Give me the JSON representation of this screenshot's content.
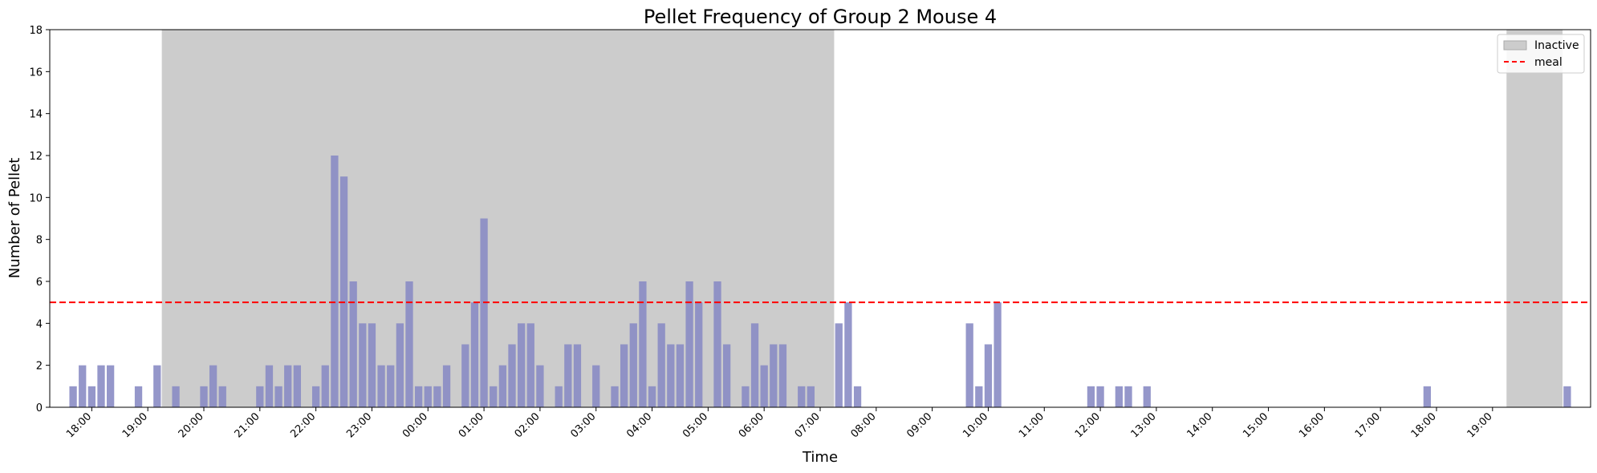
{
  "chart_data": {
    "type": "bar",
    "title": "Pellet Frequency of Group 2 Mouse 4",
    "xlabel": "Time",
    "ylabel": "Number of Pellet",
    "x_unit": "hour",
    "x_start": "17:15",
    "xlim": [
      "17:15",
      "20:45 (next day)"
    ],
    "ylim": [
      0,
      18
    ],
    "yticks": [
      0,
      2,
      4,
      6,
      8,
      10,
      12,
      14,
      16,
      18
    ],
    "xtick_labels": [
      "18:00",
      "19:00",
      "20:00",
      "21:00",
      "22:00",
      "23:00",
      "00:00",
      "01:00",
      "02:00",
      "03:00",
      "04:00",
      "05:00",
      "06:00",
      "07:00",
      "08:00",
      "09:00",
      "10:00",
      "11:00",
      "12:00",
      "13:00",
      "14:00",
      "15:00",
      "16:00",
      "17:00",
      "18:00",
      "19:00"
    ],
    "bar_width_hours": 0.133,
    "bar_color": "#8a8cc4",
    "series": [
      {
        "points": [
          {
            "t": "17:40",
            "v": 1
          },
          {
            "t": "17:50",
            "v": 2
          },
          {
            "t": "18:00",
            "v": 1
          },
          {
            "t": "18:10",
            "v": 2
          },
          {
            "t": "18:20",
            "v": 2
          },
          {
            "t": "18:50",
            "v": 1
          },
          {
            "t": "19:10",
            "v": 2
          },
          {
            "t": "19:30",
            "v": 1
          },
          {
            "t": "20:00",
            "v": 1
          },
          {
            "t": "20:10",
            "v": 2
          },
          {
            "t": "20:20",
            "v": 1
          },
          {
            "t": "21:00",
            "v": 1
          },
          {
            "t": "21:10",
            "v": 2
          },
          {
            "t": "21:20",
            "v": 1
          },
          {
            "t": "21:30",
            "v": 2
          },
          {
            "t": "21:40",
            "v": 2
          },
          {
            "t": "22:00",
            "v": 1
          },
          {
            "t": "22:10",
            "v": 2
          },
          {
            "t": "22:20",
            "v": 12
          },
          {
            "t": "22:30",
            "v": 11
          },
          {
            "t": "22:40",
            "v": 6
          },
          {
            "t": "22:50",
            "v": 4
          },
          {
            "t": "23:00",
            "v": 4
          },
          {
            "t": "23:10",
            "v": 2
          },
          {
            "t": "23:20",
            "v": 2
          },
          {
            "t": "23:30",
            "v": 4
          },
          {
            "t": "23:40",
            "v": 6
          },
          {
            "t": "23:50",
            "v": 1
          },
          {
            "t": "00:00",
            "v": 1
          },
          {
            "t": "00:10",
            "v": 1
          },
          {
            "t": "00:20",
            "v": 2
          },
          {
            "t": "00:40",
            "v": 3
          },
          {
            "t": "00:50",
            "v": 5
          },
          {
            "t": "01:00",
            "v": 9
          },
          {
            "t": "01:10",
            "v": 1
          },
          {
            "t": "01:20",
            "v": 2
          },
          {
            "t": "01:30",
            "v": 3
          },
          {
            "t": "01:40",
            "v": 4
          },
          {
            "t": "01:50",
            "v": 4
          },
          {
            "t": "02:00",
            "v": 2
          },
          {
            "t": "02:20",
            "v": 1
          },
          {
            "t": "02:30",
            "v": 3
          },
          {
            "t": "02:40",
            "v": 3
          },
          {
            "t": "03:00",
            "v": 2
          },
          {
            "t": "03:20",
            "v": 1
          },
          {
            "t": "03:30",
            "v": 3
          },
          {
            "t": "03:40",
            "v": 4
          },
          {
            "t": "03:50",
            "v": 6
          },
          {
            "t": "04:00",
            "v": 1
          },
          {
            "t": "04:10",
            "v": 4
          },
          {
            "t": "04:20",
            "v": 3
          },
          {
            "t": "04:30",
            "v": 3
          },
          {
            "t": "04:40",
            "v": 6
          },
          {
            "t": "04:50",
            "v": 5
          },
          {
            "t": "05:10",
            "v": 6
          },
          {
            "t": "05:20",
            "v": 3
          },
          {
            "t": "05:40",
            "v": 1
          },
          {
            "t": "05:50",
            "v": 4
          },
          {
            "t": "06:00",
            "v": 2
          },
          {
            "t": "06:10",
            "v": 3
          },
          {
            "t": "06:20",
            "v": 3
          },
          {
            "t": "06:40",
            "v": 1
          },
          {
            "t": "06:50",
            "v": 1
          },
          {
            "t": "07:20",
            "v": 4
          },
          {
            "t": "07:30",
            "v": 5
          },
          {
            "t": "07:40",
            "v": 1
          },
          {
            "t": "09:40",
            "v": 4
          },
          {
            "t": "09:50",
            "v": 1
          },
          {
            "t": "10:00",
            "v": 3
          },
          {
            "t": "10:10",
            "v": 5
          },
          {
            "t": "11:50",
            "v": 1
          },
          {
            "t": "12:00",
            "v": 1
          },
          {
            "t": "12:20",
            "v": 1
          },
          {
            "t": "12:30",
            "v": 1
          },
          {
            "t": "12:50",
            "v": 1
          },
          {
            "t": "17:50",
            "v": 1
          },
          {
            "t": "20:20",
            "v": 1
          }
        ]
      }
    ],
    "inactive_periods": [
      {
        "start": "19:15",
        "end": "07:15"
      },
      {
        "start": "19:15",
        "end": "20:15"
      }
    ],
    "inactive_color": "#cccccc",
    "meal_threshold": 5,
    "meal_color": "#ff0000",
    "legend": {
      "placement": "top-right",
      "entries": [
        {
          "label": "Inactive",
          "kind": "patch",
          "color": "#cccccc"
        },
        {
          "label": "meal",
          "kind": "dashed-line",
          "color": "#ff0000"
        }
      ]
    },
    "grid": false
  }
}
